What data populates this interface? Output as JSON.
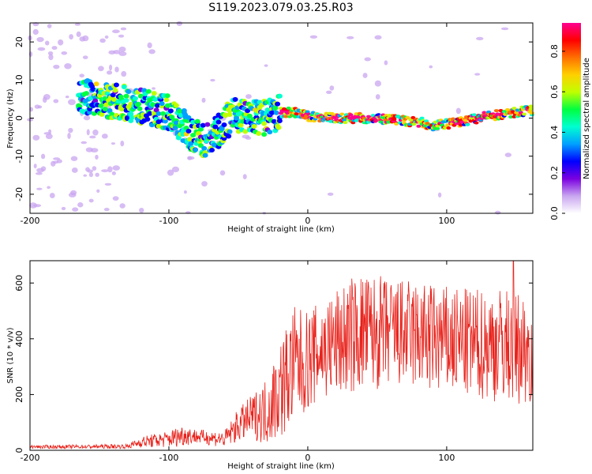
{
  "title": "S119.2023.079.03.25.R03",
  "colors": {
    "snr_line": "#e8211a",
    "spec_main": "#4b00d8",
    "spec_faint": "#c9a6f0"
  },
  "chart_data": [
    {
      "type": "heatmap",
      "name": "spectrogram",
      "xlabel": "Height of straight line (km)",
      "ylabel": "Frequency (Hz)",
      "xlim": [
        -200,
        162
      ],
      "ylim": [
        -25,
        25
      ],
      "xticks": [
        -200,
        -100,
        0,
        100
      ],
      "yticks": [
        -20,
        -10,
        0,
        10,
        20
      ],
      "colorbar": {
        "label": "Normalized spectral amplitude",
        "range": [
          0,
          0.94
        ],
        "ticks": [
          0.0,
          0.2,
          0.4,
          0.6,
          0.8
        ],
        "colormap": [
          "#ffffff",
          "#c9a6f0",
          "#7a00e0",
          "#0000ff",
          "#00a0ff",
          "#00ffd0",
          "#00ff40",
          "#c0ff00",
          "#ffd000",
          "#ff7000",
          "#ff0000",
          "#ff0090"
        ]
      },
      "ridge": {
        "description_points": [
          [
            -160,
            5.5
          ],
          [
            -130,
            4.0
          ],
          [
            -120,
            3.0
          ],
          [
            -100,
            1.5
          ],
          [
            -90,
            -2.0
          ],
          [
            -80,
            -5.0
          ],
          [
            -70,
            -6.0
          ],
          [
            -60,
            -1.0
          ],
          [
            -50,
            1.0
          ],
          [
            -40,
            0.0
          ],
          [
            -30,
            0.0
          ],
          [
            -20,
            1.5
          ],
          [
            -10,
            1.5
          ],
          [
            0,
            0.5
          ],
          [
            20,
            0.0
          ],
          [
            40,
            0.0
          ],
          [
            60,
            -0.5
          ],
          [
            80,
            -1.0
          ],
          [
            90,
            -2.0
          ],
          [
            100,
            -1.5
          ],
          [
            110,
            -1.0
          ],
          [
            130,
            0.5
          ],
          [
            150,
            1.5
          ],
          [
            162,
            2.0
          ]
        ]
      }
    },
    {
      "type": "line",
      "name": "snr",
      "xlabel": "Height of straight line (km)",
      "ylabel": "SNR (10 * v/v)",
      "xlim": [
        -200,
        162
      ],
      "ylim": [
        0,
        680
      ],
      "xticks": [
        -200,
        -100,
        0,
        100
      ],
      "yticks": [
        0,
        200,
        400,
        600
      ],
      "envelope": {
        "x": [
          -200,
          -130,
          -120,
          -100,
          -90,
          -80,
          -60,
          -50,
          -40,
          -30,
          -20,
          -10,
          0,
          10,
          20,
          30,
          40,
          60,
          80,
          100,
          120,
          140,
          162
        ],
        "mean": [
          12,
          14,
          30,
          40,
          55,
          50,
          40,
          90,
          120,
          140,
          220,
          300,
          320,
          360,
          380,
          410,
          420,
          420,
          410,
          390,
          380,
          380,
          360
        ],
        "spread": [
          6,
          8,
          20,
          30,
          40,
          25,
          30,
          60,
          80,
          120,
          180,
          220,
          180,
          180,
          200,
          210,
          220,
          200,
          200,
          200,
          200,
          210,
          200
        ]
      },
      "peak": [
        148,
        680
      ]
    }
  ]
}
